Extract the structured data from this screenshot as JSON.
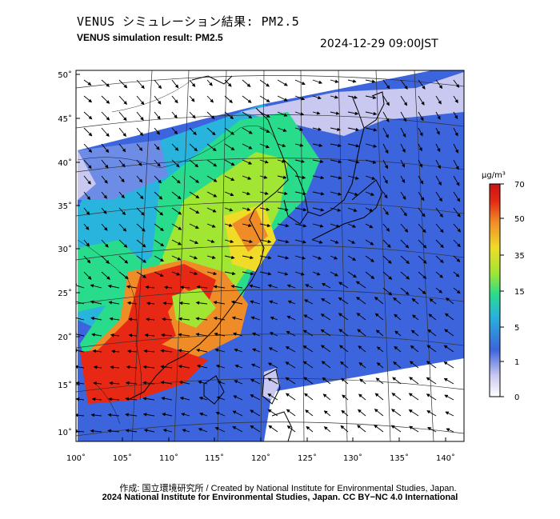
{
  "header": {
    "title_ja": "VENUS シミュレーション結果: PM2.5",
    "title_en": "VENUS simulation result: PM2.5",
    "timestamp": "2024-12-29 09:00JST"
  },
  "map": {
    "lon_range": [
      100,
      142
    ],
    "lat_range": [
      9,
      51
    ],
    "lon_ticks": [
      "100˚",
      "105˚",
      "110˚",
      "115˚",
      "120˚",
      "125˚",
      "130˚",
      "135˚",
      "140˚"
    ],
    "lat_ticks": [
      "50˚",
      "45˚",
      "40˚",
      "35˚",
      "30˚",
      "25˚",
      "20˚",
      "15˚",
      "10˚"
    ],
    "overlay": "wind-vectors",
    "field": "PM2.5 concentration"
  },
  "colorbar": {
    "unit": "μg/m³",
    "ticks": [
      "70",
      "50",
      "35",
      "15",
      "5",
      "1",
      "0"
    ],
    "colors": [
      "#ffffff",
      "#c8c8f0",
      "#3c64dc",
      "#28b4dc",
      "#28dc8c",
      "#a0e632",
      "#f0dc28",
      "#f08c28",
      "#e62814",
      "#c81414"
    ]
  },
  "footer": {
    "credit_line1": "作成: 国立環境研究所 / Created by National Institute for Environmental Studies, Japan.",
    "credit_line2": "2024 National Institute for Environmental Studies, Japan. CC BY−NC 4.0 International"
  }
}
